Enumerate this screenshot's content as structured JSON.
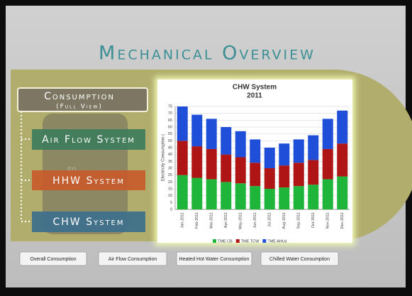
{
  "header": {
    "title": "Mechanical Overview"
  },
  "menu": [
    {
      "label": "Consumption",
      "sublabel": "(Full View)"
    },
    {
      "label": "Air Flow System"
    },
    {
      "label": "HHW System"
    },
    {
      "label": "CHW System"
    }
  ],
  "buttons": [
    "Overall Consumption",
    "Air Flow Consumption",
    "Heated Hot Water Consumption",
    "Chilled Water Consumption"
  ],
  "chart_data": {
    "type": "stacked_bar",
    "title": "CHW System",
    "subtitle": "2011",
    "y_label": "Electricity Consumption (",
    "categories": [
      "Jan-2011",
      "Feb-2011",
      "Mar-2011",
      "Apr-2011",
      "May-2011",
      "Jun-2011",
      "Jul-2011",
      "Aug-2011",
      "Sep-2011",
      "Oct-2011",
      "Nov-2011",
      "Dec-2011"
    ],
    "series": [
      {
        "name": "TME CB",
        "color": "#1fb53a",
        "values": [
          25,
          23,
          22,
          20,
          19,
          17,
          15,
          16,
          17,
          18,
          22,
          24
        ]
      },
      {
        "name": "TME TCW",
        "color": "#b01515",
        "values": [
          25,
          23,
          22,
          20,
          19,
          17,
          15,
          16,
          17,
          18,
          22,
          24
        ]
      },
      {
        "name": "TME AHUs",
        "color": "#1f4fd8",
        "values": [
          25,
          23,
          22,
          20,
          19,
          17,
          15,
          16,
          17,
          18,
          22,
          24
        ]
      }
    ],
    "ylim": [
      0,
      75
    ],
    "yticks": [
      0,
      5,
      10,
      15,
      20,
      25,
      30,
      35,
      40,
      45,
      50,
      55,
      60,
      65,
      70,
      75
    ],
    "grid": true
  }
}
